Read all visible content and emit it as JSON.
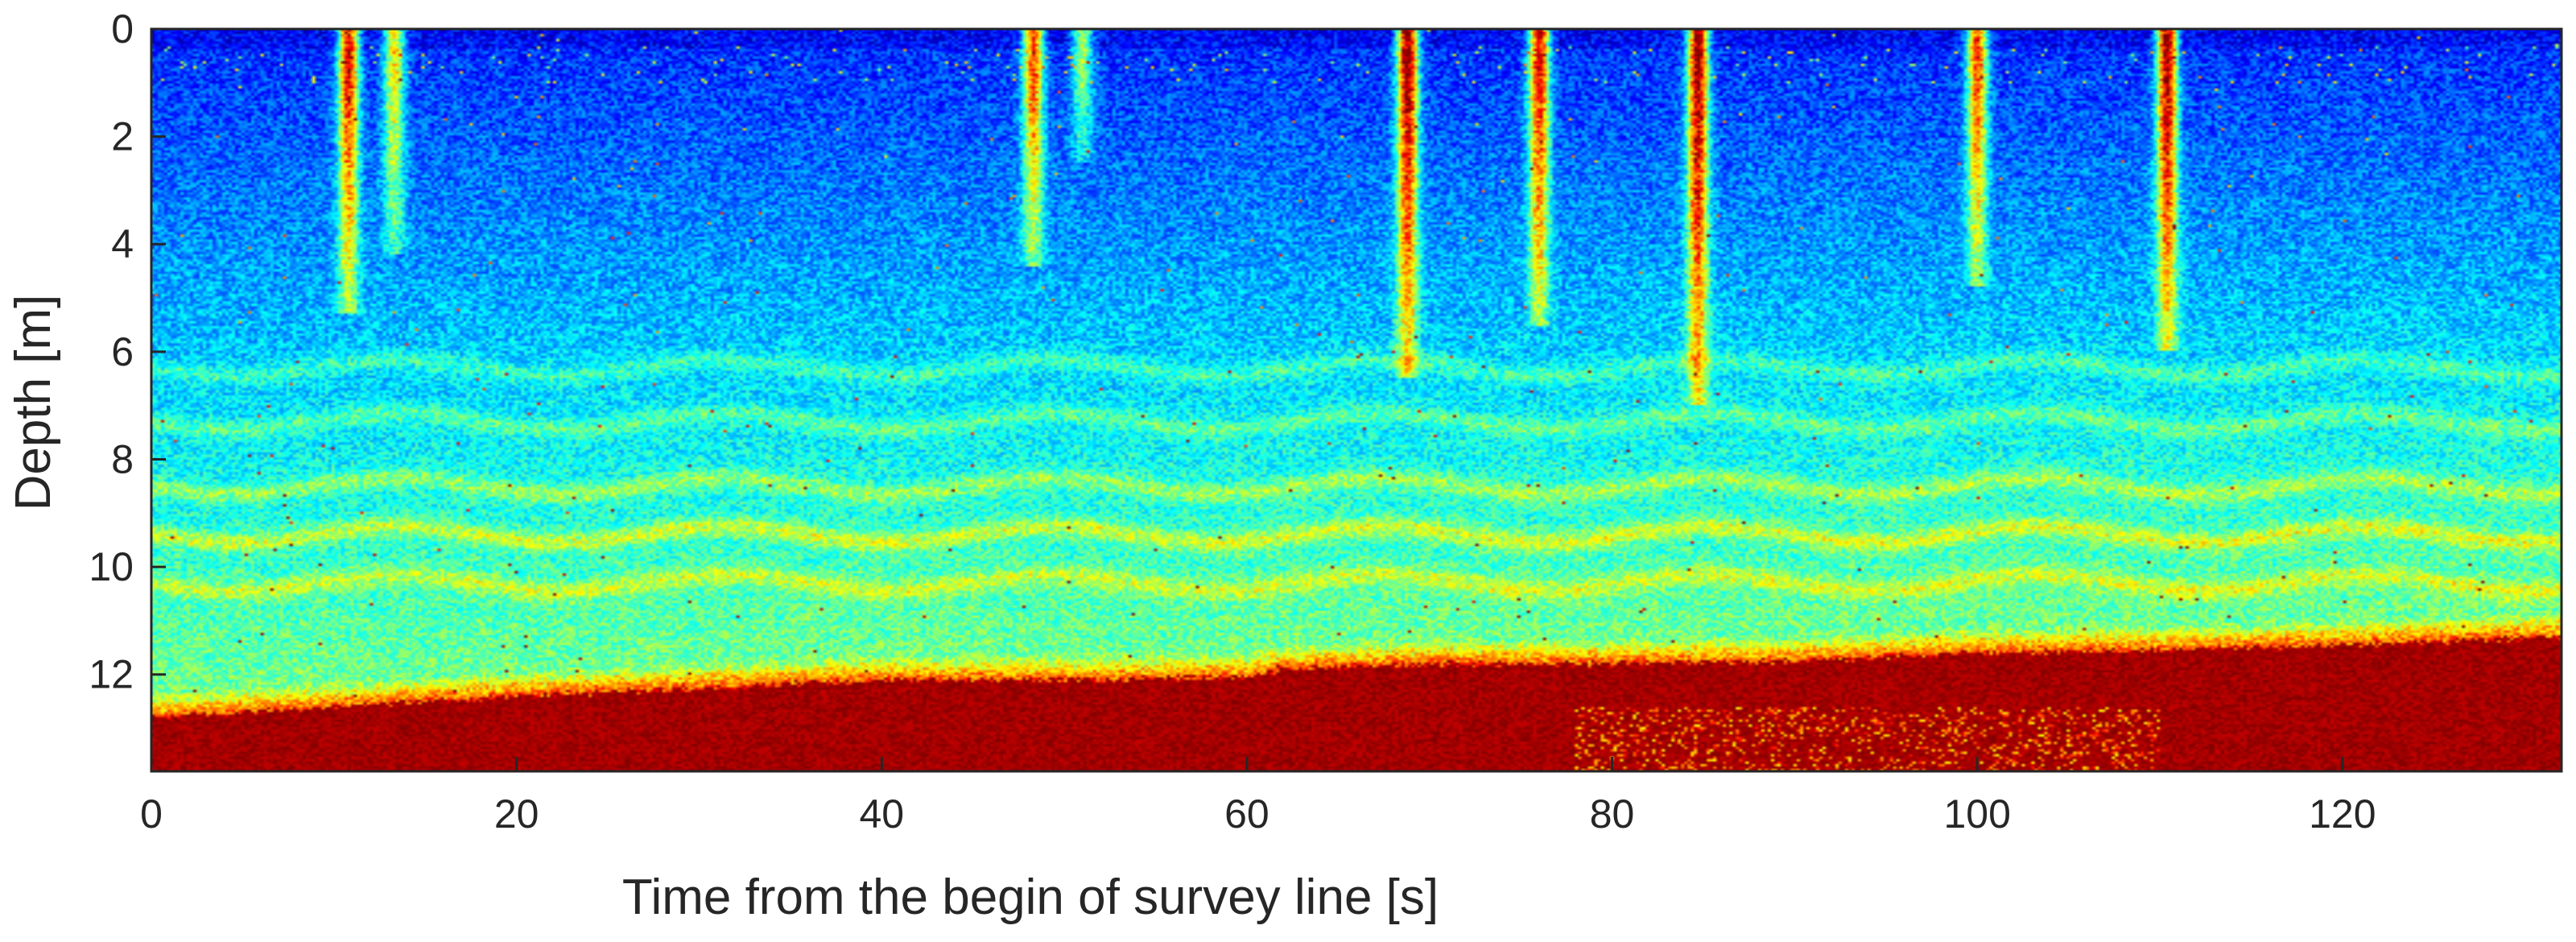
{
  "chart_data": {
    "type": "heatmap",
    "title": "",
    "xlabel": "Time from the begin of survey line [s]",
    "ylabel": "Depth [m]",
    "xlim": [
      0,
      132
    ],
    "ylim": [
      0,
      13.8
    ],
    "y_reversed": true,
    "xticks": [
      0,
      20,
      40,
      60,
      80,
      100,
      120
    ],
    "yticks": [
      0,
      2,
      4,
      6,
      8,
      10,
      12
    ],
    "grid": false,
    "colormap": "jet",
    "colors": {
      "background_low": "#0a1fd8",
      "mid": "#1a8cff",
      "cyan": "#34e6ff",
      "yellow": "#ffe23a",
      "seabed": "#800000"
    },
    "seabed_depth": {
      "x": [
        0,
        10,
        20,
        30,
        40,
        50,
        60,
        62,
        70,
        80,
        90,
        100,
        110,
        120,
        132
      ],
      "y": [
        12.8,
        12.6,
        12.4,
        12.25,
        12.1,
        12.1,
        12.05,
        11.9,
        11.8,
        11.8,
        11.75,
        11.6,
        11.55,
        11.45,
        11.3
      ]
    },
    "plumes": [
      {
        "x": 10.8,
        "max_depth": 5.3,
        "intensity": 0.9
      },
      {
        "x": 13.3,
        "max_depth": 4.2,
        "intensity": 0.6
      },
      {
        "x": 48.3,
        "max_depth": 4.4,
        "intensity": 0.8
      },
      {
        "x": 51.0,
        "max_depth": 2.5,
        "intensity": 0.5
      },
      {
        "x": 68.8,
        "max_depth": 6.5,
        "intensity": 1.0
      },
      {
        "x": 76.0,
        "max_depth": 5.5,
        "intensity": 0.9
      },
      {
        "x": 84.7,
        "max_depth": 7.0,
        "intensity": 1.0
      },
      {
        "x": 100.0,
        "max_depth": 4.8,
        "intensity": 0.8
      },
      {
        "x": 110.4,
        "max_depth": 6.0,
        "intensity": 1.0
      }
    ],
    "layers": [
      {
        "depth": 6.3,
        "intensity": 0.35
      },
      {
        "depth": 7.3,
        "intensity": 0.35
      },
      {
        "depth": 8.5,
        "intensity": 0.45
      },
      {
        "depth": 9.4,
        "intensity": 0.55
      },
      {
        "depth": 10.3,
        "intensity": 0.45
      }
    ]
  }
}
